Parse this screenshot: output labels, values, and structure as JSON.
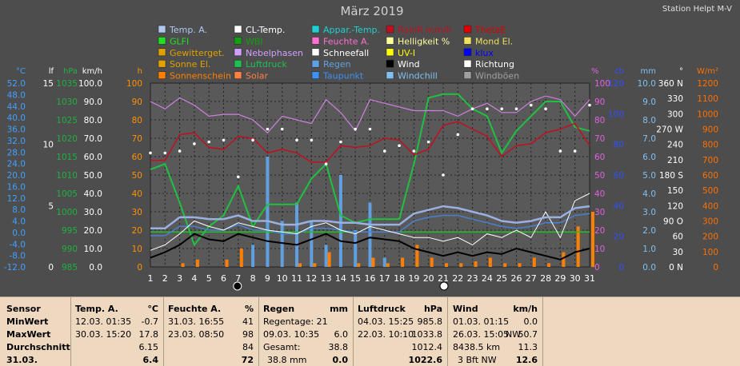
{
  "header": {
    "title": "März 2019",
    "station": "Station Helpt M-V"
  },
  "legend": [
    {
      "label": "Temp. A.",
      "color": "#b0c8f0"
    },
    {
      "label": "CL-Temp.",
      "color": "#ffffff"
    },
    {
      "label": "Appar.-Temp.",
      "color": "#20d0d0"
    },
    {
      "label": "RainR mm/h",
      "color": "#c01020"
    },
    {
      "label": "ThetaE",
      "color": "#e00000"
    },
    {
      "label": "GLFI",
      "color": "#20e020"
    },
    {
      "label": "WBI",
      "color": "#10a010"
    },
    {
      "label": "Feuchte A.",
      "color": "#ff70d0"
    },
    {
      "label": "Helligkeit %",
      "color": "#ffffa0"
    },
    {
      "label": "Mond El.",
      "color": "#f0e060"
    },
    {
      "label": "Gewitterget.",
      "color": "#e0a000"
    },
    {
      "label": "Nebelphasen",
      "color": "#d0a0ff"
    },
    {
      "label": "Schneefall",
      "color": "#ffffff"
    },
    {
      "label": "UV-I",
      "color": "#ffff00"
    },
    {
      "label": "klux",
      "color": "#0000ff"
    },
    {
      "label": "Sonne El.",
      "color": "#e0a000"
    },
    {
      "label": "Luftdruck",
      "color": "#20c050"
    },
    {
      "label": "Regen",
      "color": "#60a0e0"
    },
    {
      "label": "Wind",
      "color": "#000000"
    },
    {
      "label": "Richtung",
      "color": "#ffffff"
    },
    {
      "label": "Sonnenschein",
      "color": "#ff8000"
    },
    {
      "label": "Solar",
      "color": "#ff8040"
    },
    {
      "label": "Taupunkt",
      "color": "#4090f0"
    },
    {
      "label": "Windchill",
      "color": "#80c0f0"
    },
    {
      "label": "Windböen",
      "color": "#a0a0a0"
    }
  ],
  "colors": {
    "temp": "#9ab0e0",
    "humidity": "#d080e0",
    "pressure": "#20c040",
    "thetae": "#c01020",
    "wind": "#000000",
    "gusts": "#ffffff",
    "rain": "#60a0e0",
    "direction": "#ffffff",
    "sunshine": "#ff8000",
    "dewpoint": "#4a80d0",
    "level": "#20c020"
  },
  "chart_data": {
    "type": "line",
    "x": [
      1,
      2,
      3,
      4,
      5,
      6,
      7,
      8,
      9,
      10,
      11,
      12,
      13,
      14,
      15,
      16,
      17,
      18,
      19,
      20,
      21,
      22,
      23,
      24,
      25,
      26,
      27,
      28,
      29,
      30,
      31
    ],
    "xlim": [
      1,
      31
    ],
    "ylim": [
      0,
      100
    ],
    "axes": [
      {
        "unit": "°C",
        "ticks": [
          "52.0",
          "48.0",
          "44.0",
          "40.0",
          "36.0",
          "32.0",
          "28.0",
          "24.0",
          "20.0",
          "16.0",
          "12.0",
          "8.0",
          "4.0",
          "0.0",
          "-4.0",
          "-8.0",
          "-12.0"
        ],
        "color": "#40a0ff"
      },
      {
        "unit": "lf",
        "ticks": [
          "15",
          "10",
          "5",
          "0"
        ],
        "color": "#ffffff"
      },
      {
        "unit": "hPa",
        "ticks": [
          "1035",
          "1030",
          "1025",
          "1020",
          "1015",
          "1010",
          "1005",
          "1000",
          "995",
          "990",
          "985"
        ],
        "color": "#20b040"
      },
      {
        "unit": "km/h",
        "ticks": [
          "100.0",
          "90.0",
          "80.0",
          "70.0",
          "60.0",
          "50.0",
          "40.0",
          "30.0",
          "20.0",
          "10.0",
          "0.0"
        ],
        "color": "#ffffff"
      },
      {
        "unit": "h",
        "ticks": [
          "100",
          "90",
          "80",
          "70",
          "60",
          "50",
          "40",
          "30",
          "20",
          "10",
          "0"
        ],
        "color": "#ff9000"
      },
      {
        "unit": "%",
        "ticks": [
          "100",
          "90",
          "80",
          "70",
          "60",
          "50",
          "40",
          "30",
          "20",
          "10",
          "0"
        ],
        "color": "#e060e0"
      },
      {
        "unit": "cb",
        "ticks": [
          "120",
          "100",
          "80",
          "60",
          "40",
          "20",
          "0"
        ],
        "color": "#3050ff"
      },
      {
        "unit": "mm",
        "ticks": [
          "10.0",
          "9.0",
          "8.0",
          "7.0",
          "6.0",
          "5.0",
          "4.0",
          "3.0",
          "2.0",
          "1.0",
          "0.0"
        ],
        "color": "#80c0f0"
      },
      {
        "unit": "°",
        "ticks": [
          "360 N",
          "330",
          "300",
          "270 W",
          "240",
          "210",
          "180 S",
          "150",
          "120",
          "90 O",
          "60",
          "30",
          "0 N"
        ],
        "color": "#ffffff"
      },
      {
        "unit": "W/m²",
        "ticks": [
          "1200",
          "1100",
          "1000",
          "900",
          "800",
          "700",
          "600",
          "500",
          "400",
          "300",
          "200",
          "100",
          "0"
        ],
        "color": "#ff7000"
      }
    ],
    "series": [
      {
        "key": "pressure",
        "values": [
          53,
          56,
          35,
          12,
          22,
          28,
          44,
          22,
          34,
          34,
          34,
          48,
          56,
          28,
          24,
          26,
          26,
          26,
          56,
          92,
          94,
          94,
          86,
          82,
          62,
          74,
          82,
          90,
          90,
          76,
          74
        ]
      },
      {
        "key": "humidity",
        "values": [
          90,
          86,
          92,
          88,
          82,
          83,
          83,
          80,
          73,
          82,
          80,
          78,
          91,
          84,
          74,
          91,
          89,
          87,
          85,
          85,
          85,
          82,
          86,
          89,
          84,
          84,
          90,
          93,
          91,
          82,
          91
        ]
      },
      {
        "key": "thetae",
        "values": [
          58,
          58,
          72,
          73,
          65,
          64,
          71,
          70,
          62,
          64,
          62,
          57,
          57,
          66,
          65,
          66,
          70,
          69,
          61,
          64,
          77,
          79,
          75,
          71,
          60,
          66,
          67,
          73,
          75,
          78,
          66
        ]
      },
      {
        "key": "temp",
        "values": [
          21,
          21,
          27,
          27,
          26,
          26,
          28,
          25,
          25,
          23,
          23,
          25,
          25,
          24,
          24,
          23,
          23,
          23,
          29,
          31,
          33,
          32,
          30,
          28,
          25,
          24,
          25,
          27,
          27,
          32,
          33
        ]
      },
      {
        "key": "dewpoint",
        "values": [
          17,
          17,
          22,
          22,
          20,
          20,
          23,
          20,
          20,
          18,
          18,
          21,
          21,
          20,
          19,
          19,
          19,
          19,
          25,
          27,
          28,
          28,
          26,
          24,
          22,
          21,
          22,
          24,
          24,
          28,
          29
        ]
      },
      {
        "key": "wind",
        "values": [
          5,
          8,
          12,
          18,
          15,
          14,
          18,
          16,
          14,
          13,
          12,
          15,
          18,
          14,
          13,
          16,
          15,
          14,
          10,
          8,
          6,
          8,
          6,
          8,
          7,
          10,
          8,
          6,
          4,
          8,
          10
        ]
      },
      {
        "key": "gusts",
        "values": [
          9,
          12,
          18,
          25,
          22,
          20,
          24,
          22,
          20,
          19,
          18,
          22,
          24,
          20,
          18,
          22,
          20,
          18,
          16,
          16,
          14,
          16,
          12,
          18,
          16,
          20,
          16,
          30,
          16,
          36,
          40
        ]
      },
      {
        "key": "direction",
        "values": [
          62,
          62,
          63,
          67,
          68,
          69,
          49,
          69,
          75,
          75,
          69,
          69,
          56,
          68,
          75,
          75,
          63,
          66,
          63,
          68,
          50,
          72,
          86,
          86,
          86,
          86,
          88,
          86,
          63,
          63,
          88
        ]
      },
      {
        "key": "rain",
        "values": [
          0,
          0,
          0,
          0,
          0,
          0,
          0,
          12,
          60,
          25,
          35,
          25,
          12,
          50,
          20,
          35,
          5,
          0,
          0,
          0,
          0,
          0,
          0,
          0,
          0,
          0,
          0,
          0,
          0,
          0,
          0
        ]
      },
      {
        "key": "sunshine",
        "values": [
          0,
          0,
          2,
          4,
          0,
          4,
          10,
          0,
          0,
          0,
          2,
          2,
          8,
          0,
          2,
          5,
          2,
          5,
          12,
          5,
          2,
          2,
          3,
          5,
          2,
          2,
          5,
          2,
          8,
          22,
          30
        ]
      },
      {
        "key": "level",
        "values": [
          19,
          19,
          19,
          19,
          19,
          19,
          19,
          19,
          19,
          19,
          19,
          19,
          19,
          19,
          19,
          19,
          19,
          19,
          19,
          19,
          19,
          19,
          19,
          19,
          19,
          19,
          19,
          19,
          19,
          19,
          19
        ]
      }
    ]
  },
  "stats": {
    "headers": {
      "sensor": "Sensor",
      "temp": "Temp. A.",
      "temp_unit": "°C",
      "hum": "Feuchte A.",
      "hum_unit": "%",
      "rain": "Regen",
      "rain_unit": "mm",
      "press": "Luftdruck",
      "press_unit": "hPa",
      "wind": "Wind",
      "wind_unit": "km/h"
    },
    "labels": {
      "min": "MinWert",
      "max": "MaxWert",
      "avg": "Durchschnitt",
      "date": "31.03."
    },
    "temp": {
      "min_date": "12.03.  01:35",
      "min_val": "-0.7",
      "max_date": "30.03.  15:20",
      "max_val": "17.8",
      "avg": "6.15",
      "cur": "6.4"
    },
    "hum": {
      "min_date": "31.03.  16:55",
      "min_val": "41",
      "max_date": "23.03.  08:50",
      "max_val": "98",
      "avg": "84",
      "cur": "72"
    },
    "rain": {
      "row1": "Regentage: 21",
      "max_date": "09.03.  10:35",
      "max_val": "6.0",
      "total_label": "Gesamt:",
      "total_val": "38.8",
      "cur_label": "38.8 mm",
      "cur_val": "0.0"
    },
    "press": {
      "min_date": "04.03.  15:25",
      "min_val": "985.8",
      "max_date": "22.03.  10:10",
      "max_val": "1033.8",
      "avg": "1012.4",
      "cur": "1022.6"
    },
    "wind": {
      "min_date": "01.03.  01:15",
      "min_val": "0.0",
      "max_date": "26.03.  15:05",
      "max_dir": "NW",
      "max_val": "50.7",
      "avg_label": "8438.5 km",
      "avg": "11.3",
      "cur_label": "3 Bft NW",
      "cur": "12.6"
    }
  }
}
